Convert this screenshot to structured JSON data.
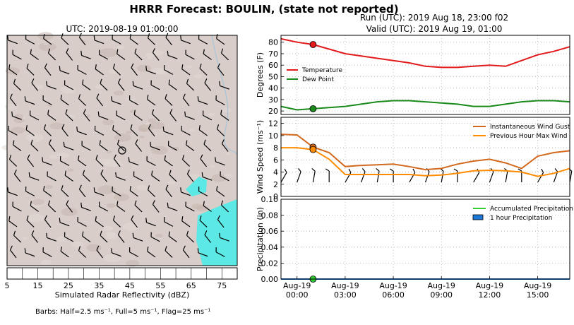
{
  "header": {
    "title": "HRRR Forecast: BOULIN, (state not reported)",
    "run": "Run (UTC): 2019 Aug 18, 23:00 f02",
    "valid": "Valid (UTC): 2019 Aug 19, 01:00"
  },
  "map": {
    "title": "UTC: 2019-08-19 01:00:00",
    "colorbar_label": "Simulated Radar Reflectivity (dBZ)",
    "colorbar_ticks": [
      "5",
      "15",
      "25",
      "35",
      "45",
      "55",
      "65",
      "75"
    ],
    "colorbar_colors": [
      "#7ff4fc",
      "#7fc7fc",
      "#8a7ff4",
      "#7ffc7f",
      "#7fde7f",
      "#7fc47f",
      "#fcfc7f",
      "#fce47f",
      "#fcca7f",
      "#fc7f7f",
      "#e47f7f",
      "#ca7f7f",
      "#fc7ffc",
      "#c7a6e8",
      "#7f7f7f"
    ],
    "barb_note": "Barbs: Half=2.5 ms⁻¹, Full=5 ms⁻¹, Flag=25 ms⁻¹",
    "terrain_color": "#d8cdc8",
    "echo_color": "#5ce8e4"
  },
  "chart_data": [
    {
      "type": "line",
      "ylabel": "Degrees (F)",
      "ylim": [
        17,
        86
      ],
      "yticks": [
        "20",
        "30",
        "40",
        "50",
        "60",
        "70",
        "80"
      ],
      "x": [
        -1,
        0,
        1,
        2,
        3,
        4,
        5,
        6,
        7,
        8,
        9,
        10,
        11,
        12,
        13,
        14,
        15,
        16,
        17
      ],
      "series": [
        {
          "name": "Temperature",
          "color": "#e31a1c",
          "values": [
            83,
            80,
            78,
            74,
            70,
            68,
            66,
            64,
            62,
            59,
            58,
            58,
            59,
            60,
            59,
            64,
            69,
            72,
            76
          ]
        },
        {
          "name": "Dew Point",
          "color": "#1a8a1a",
          "values": [
            24,
            21,
            22,
            23,
            24,
            26,
            28,
            29,
            29,
            28,
            27,
            26,
            24,
            24,
            26,
            28,
            29,
            29,
            28
          ]
        }
      ],
      "markers": [
        {
          "series": "Temperature",
          "x": 1,
          "y": 78
        },
        {
          "series": "Dew Point",
          "x": 1,
          "y": 22
        }
      ],
      "legend": "center-left",
      "grid": true
    },
    {
      "type": "line",
      "ylabel": "Wind Speed (ms⁻¹)",
      "ylim": [
        0,
        13
      ],
      "yticks": [
        "0",
        "2",
        "4",
        "6",
        "8",
        "10",
        "12"
      ],
      "x": [
        -1,
        0,
        1,
        2,
        3,
        4,
        5,
        6,
        7,
        8,
        9,
        10,
        11,
        12,
        13,
        14,
        15,
        16,
        17
      ],
      "series": [
        {
          "name": "Instantaneous Wind Gust",
          "color": "#d2691e",
          "values": [
            10.2,
            10.1,
            8.1,
            7.2,
            4.9,
            5.1,
            5.2,
            5.3,
            4.9,
            4.4,
            4.6,
            5.3,
            5.8,
            6.1,
            5.5,
            4.6,
            6.6,
            7.2,
            7.5
          ]
        },
        {
          "name": "Previous Hour Max Wind",
          "color": "#ff8c00",
          "values": [
            8.0,
            8.0,
            7.7,
            6.1,
            3.6,
            3.6,
            3.6,
            3.6,
            3.6,
            3.4,
            3.5,
            3.8,
            4.2,
            4.3,
            4.2,
            4.0,
            3.3,
            3.8,
            4.6
          ]
        }
      ],
      "markers": [
        {
          "series": "Instantaneous Wind Gust",
          "x": 1,
          "y": 8.1
        },
        {
          "series": "Previous Hour Max Wind",
          "x": 1,
          "y": 7.7
        }
      ],
      "legend": "top-right",
      "grid": true
    },
    {
      "type": "line",
      "ylabel": "Precipitation (in)",
      "ylim": [
        0,
        0.1
      ],
      "yticks": [
        "0.00",
        "0.02",
        "0.04",
        "0.06",
        "0.08",
        "0.10"
      ],
      "x": [
        -1,
        0,
        1,
        2,
        3,
        4,
        5,
        6,
        7,
        8,
        9,
        10,
        11,
        12,
        13,
        14,
        15,
        16,
        17
      ],
      "series": [
        {
          "name": "Accumulated Precipitation",
          "color": "#32cd32",
          "values": [
            0,
            0,
            0,
            0,
            0,
            0,
            0,
            0,
            0,
            0,
            0,
            0,
            0,
            0,
            0,
            0,
            0,
            0,
            0
          ]
        },
        {
          "name": "1 hour Precipitation",
          "color": "#1e7ad6",
          "values": [
            0,
            0,
            0,
            0,
            0,
            0,
            0,
            0,
            0,
            0,
            0,
            0,
            0,
            0,
            0,
            0,
            0,
            0,
            0
          ]
        }
      ],
      "markers": [
        {
          "series": "Accumulated Precipitation",
          "x": 1,
          "y": 0
        }
      ],
      "legend": "top-right",
      "grid": true,
      "xtick_labels": [
        {
          "x": 0,
          "top": "Aug-19",
          "bottom": "00:00"
        },
        {
          "x": 3,
          "top": "Aug-19",
          "bottom": "03:00"
        },
        {
          "x": 6,
          "top": "Aug-19",
          "bottom": "06:00"
        },
        {
          "x": 9,
          "top": "Aug-19",
          "bottom": "09:00"
        },
        {
          "x": 12,
          "top": "Aug-19",
          "bottom": "12:00"
        },
        {
          "x": 15,
          "top": "Aug-19",
          "bottom": "15:00"
        }
      ]
    }
  ]
}
